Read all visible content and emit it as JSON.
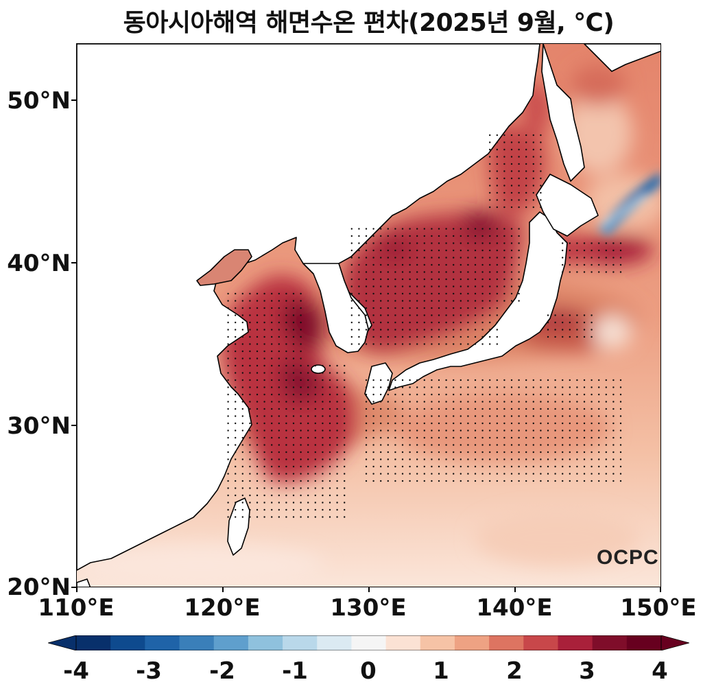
{
  "title": "동아시아해역 해면수온 편차(2025년 9월, ℃)",
  "axes": {
    "lat_labels": [
      "50°N",
      "40°N",
      "30°N",
      "20°N"
    ],
    "lon_labels": [
      "110°E",
      "120°E",
      "130°E",
      "140°E",
      "150°E"
    ]
  },
  "colorbar": {
    "labels": [
      "-4",
      "-3",
      "-2",
      "-1",
      "0",
      "1",
      "2",
      "3",
      "4"
    ],
    "min": -4,
    "max": 4,
    "colors": [
      "#08306b",
      "#0e4a8e",
      "#1f63a8",
      "#3a7fb9",
      "#5f9fcd",
      "#8fc1dd",
      "#b9d8ea",
      "#dbeaf2",
      "#f5f5f5",
      "#fbe2d4",
      "#f6c3a6",
      "#eea283",
      "#dd7461",
      "#c8474a",
      "#a9203a",
      "#7f0d2a",
      "#67001f"
    ]
  },
  "map": {
    "extent": {
      "lon": [
        110,
        150
      ],
      "lat": [
        20,
        53.5
      ]
    },
    "land_color": "#ffffff",
    "coast_color": "#000000"
  },
  "logo": {
    "text": "OCPC"
  }
}
